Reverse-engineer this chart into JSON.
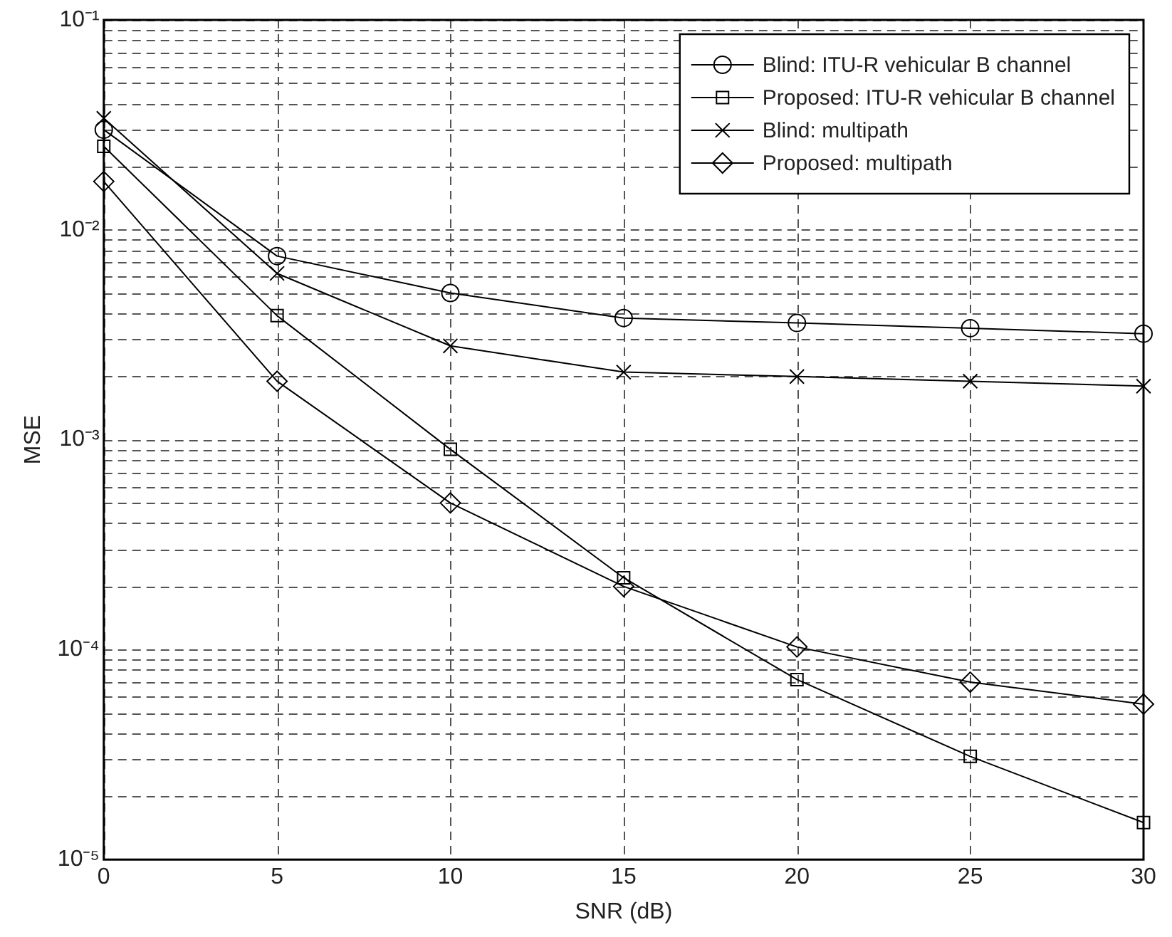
{
  "chart_data": {
    "type": "line",
    "xlabel": "SNR (dB)",
    "ylabel": "MSE",
    "log": "y",
    "grid": true,
    "legend": "top right",
    "line_style": "solid",
    "x": [
      0,
      5,
      10,
      15,
      20,
      25,
      30
    ],
    "xlim": [
      0,
      30
    ],
    "xticks": [
      0,
      5,
      10,
      15,
      20,
      25,
      30
    ],
    "ylim": [
      1e-05,
      0.1
    ],
    "yticks": [
      {
        "value": 1e-05,
        "label": "10⁻⁵"
      },
      {
        "value": 2e-05,
        "label": null
      },
      {
        "value": 3e-05,
        "label": null
      },
      {
        "value": 4e-05,
        "label": null
      },
      {
        "value": 5e-05,
        "label": null
      },
      {
        "value": 6e-05,
        "label": null
      },
      {
        "value": 7e-05,
        "label": null
      },
      {
        "value": 8e-05,
        "label": null
      },
      {
        "value": 9e-05,
        "label": null
      },
      {
        "value": 0.0001,
        "label": "10⁻⁴"
      },
      {
        "value": 0.0002,
        "label": null
      },
      {
        "value": 0.0003,
        "label": null
      },
      {
        "value": 0.0004,
        "label": null
      },
      {
        "value": 0.0005,
        "label": null
      },
      {
        "value": 0.0006,
        "label": null
      },
      {
        "value": 0.0007,
        "label": null
      },
      {
        "value": 0.0008,
        "label": null
      },
      {
        "value": 0.0009,
        "label": null
      },
      {
        "value": 0.001,
        "label": "10⁻³"
      },
      {
        "value": 0.002,
        "label": null
      },
      {
        "value": 0.003,
        "label": null
      },
      {
        "value": 0.004,
        "label": null
      },
      {
        "value": 0.005,
        "label": null
      },
      {
        "value": 0.006,
        "label": null
      },
      {
        "value": 0.007,
        "label": null
      },
      {
        "value": 0.008,
        "label": null
      },
      {
        "value": 0.009,
        "label": null
      },
      {
        "value": 0.01,
        "label": "10⁻²"
      },
      {
        "value": 0.02,
        "label": null
      },
      {
        "value": 0.03,
        "label": null
      },
      {
        "value": 0.04,
        "label": null
      },
      {
        "value": 0.05,
        "label": null
      },
      {
        "value": 0.06,
        "label": null
      },
      {
        "value": 0.07,
        "label": null
      },
      {
        "value": 0.08,
        "label": null
      },
      {
        "value": 0.09,
        "label": null
      },
      {
        "value": 0.1,
        "label": "10⁻¹"
      }
    ],
    "series": [
      {
        "name": "Blind: ITU-R vehicular B channel",
        "color": "#000000",
        "marker": "circle",
        "values": [
          0.03,
          0.0075,
          0.005,
          0.0038,
          0.0036,
          0.0034,
          0.0032
        ]
      },
      {
        "name": "Proposed: ITU-R vehicular B channel",
        "color": "#000000",
        "marker": "square",
        "values": [
          0.025,
          0.0039,
          0.0009,
          0.00022,
          7.2e-05,
          3.1e-05,
          1.5e-05
        ]
      },
      {
        "name": "Blind: multipath",
        "color": "#000000",
        "marker": "cross",
        "values": [
          0.034,
          0.0062,
          0.0028,
          0.0021,
          0.002,
          0.0019,
          0.0018
        ]
      },
      {
        "name": "Proposed: multipath",
        "color": "#000000",
        "marker": "diamond",
        "values": [
          0.017,
          0.0019,
          0.0005,
          0.0002,
          0.000103,
          7e-05,
          5.5e-05
        ]
      }
    ]
  }
}
